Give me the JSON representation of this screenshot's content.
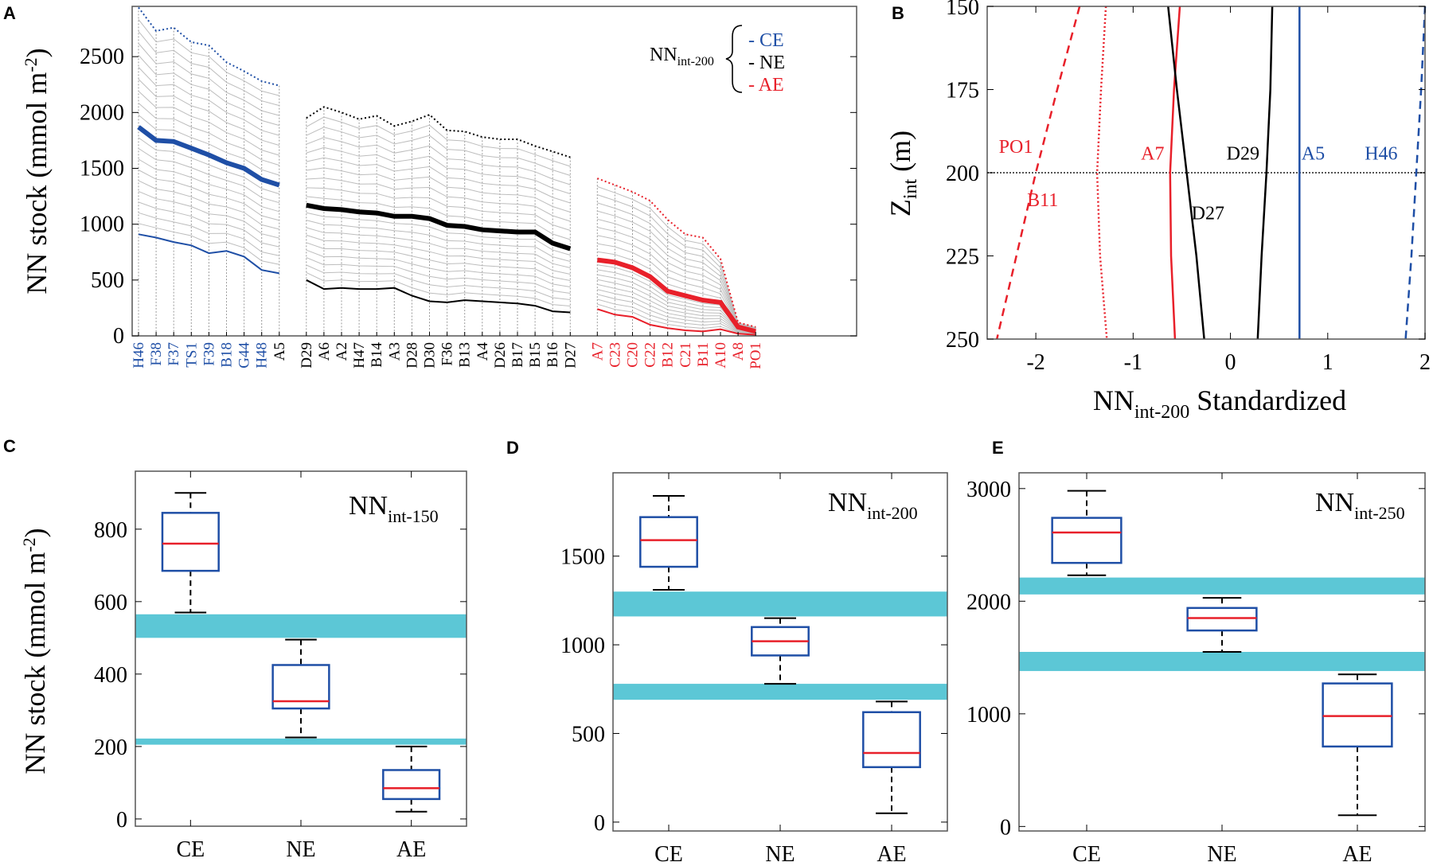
{
  "chart_data": [
    {
      "panel": "A",
      "type": "line",
      "ylabel": "NN stock (mmol m-2)",
      "ylabel_main": "NN stock (mmol m",
      "ylabel_sup": "-2",
      "ylabel_end": ")",
      "ylim": [
        0,
        2950
      ],
      "yticks": [
        0,
        500,
        1000,
        1500,
        2000,
        2500
      ],
      "legend": {
        "label_main": "NN",
        "label_sub": "int-200",
        "entries": [
          {
            "mark": "-",
            "name": "CE",
            "color": "#1f4fa6"
          },
          {
            "mark": "-",
            "name": "NE",
            "color": "#000000"
          },
          {
            "mark": "-",
            "name": "AE",
            "color": "#e8202a"
          }
        ]
      },
      "groups": [
        {
          "name": "CE",
          "color": "#1f4fa6",
          "stations": [
            "H46",
            "F38",
            "F37",
            "TS1",
            "F39",
            "B18",
            "G44",
            "H48",
            "A5"
          ],
          "station_colors": [
            "#1f4fa6",
            "#1f4fa6",
            "#1f4fa6",
            "#1f4fa6",
            "#1f4fa6",
            "#1f4fa6",
            "#1f4fa6",
            "#1f4fa6",
            "#000000"
          ],
          "top_250": [
            2940,
            2730,
            2760,
            2630,
            2600,
            2450,
            2370,
            2280,
            2240
          ],
          "mid_200": [
            1870,
            1750,
            1740,
            1680,
            1620,
            1550,
            1500,
            1400,
            1350
          ],
          "bot_150": [
            910,
            880,
            840,
            810,
            740,
            760,
            710,
            590,
            560
          ]
        },
        {
          "name": "NE",
          "color": "#000000",
          "stations": [
            "D29",
            "A6",
            "A2",
            "H47",
            "B14",
            "A3",
            "D28",
            "D30",
            "F36",
            "B13",
            "A4",
            "D26",
            "B17",
            "B15",
            "B16",
            "D27"
          ],
          "station_colors": [
            "#000000",
            "#000000",
            "#000000",
            "#000000",
            "#000000",
            "#000000",
            "#000000",
            "#000000",
            "#000000",
            "#000000",
            "#000000",
            "#000000",
            "#000000",
            "#000000",
            "#000000",
            "#000000"
          ],
          "top_250": [
            1950,
            2050,
            2000,
            1940,
            1970,
            1880,
            1920,
            1980,
            1840,
            1830,
            1780,
            1760,
            1760,
            1700,
            1650,
            1600
          ],
          "mid_200": [
            1170,
            1140,
            1130,
            1110,
            1100,
            1070,
            1070,
            1050,
            990,
            980,
            950,
            940,
            930,
            930,
            830,
            780
          ],
          "bot_150": [
            500,
            420,
            430,
            420,
            420,
            430,
            360,
            310,
            300,
            320,
            310,
            300,
            290,
            270,
            220,
            210
          ]
        },
        {
          "name": "AE",
          "color": "#e8202a",
          "stations": [
            "A7",
            "C23",
            "C20",
            "C22",
            "B12",
            "C21",
            "B11",
            "A10",
            "A8",
            "PO1"
          ],
          "station_colors": [
            "#e8202a",
            "#e8202a",
            "#e8202a",
            "#e8202a",
            "#e8202a",
            "#e8202a",
            "#e8202a",
            "#e8202a",
            "#e8202a",
            "#e8202a"
          ],
          "top_250": [
            1410,
            1350,
            1290,
            1210,
            1040,
            910,
            880,
            690,
            120,
            80
          ],
          "mid_200": [
            680,
            660,
            610,
            530,
            400,
            360,
            320,
            300,
            80,
            40
          ],
          "bot_150": [
            240,
            190,
            170,
            100,
            70,
            50,
            40,
            60,
            20,
            10
          ]
        }
      ]
    },
    {
      "panel": "B",
      "type": "line",
      "xlabel": "NN int-200 Standardized",
      "xlabel_main": "NN",
      "xlabel_sub": "int-200",
      "xlabel_end": " Standardized",
      "ylabel_main": "Z",
      "ylabel_sub": "int",
      "ylabel_end": " (m)",
      "xlim": [
        -2.5,
        2.0
      ],
      "ylim": [
        150,
        250
      ],
      "xticks": [
        -2,
        -1,
        0,
        1,
        2
      ],
      "yticks": [
        150,
        175,
        200,
        225,
        250
      ],
      "reference_line_y": 200,
      "series": [
        {
          "name": "PO1",
          "color": "#e8202a",
          "style": "dashed",
          "x": [
            -1.55,
            -1.78,
            -2.0,
            -2.2,
            -2.4
          ],
          "y": [
            150,
            175,
            200,
            225,
            250
          ]
        },
        {
          "name": "B11",
          "color": "#e8202a",
          "style": "dotted",
          "x": [
            -1.28,
            -1.33,
            -1.37,
            -1.34,
            -1.27
          ],
          "y": [
            150,
            175,
            200,
            225,
            250
          ]
        },
        {
          "name": "A7",
          "color": "#e8202a",
          "style": "solid",
          "x": [
            -0.52,
            -0.58,
            -0.62,
            -0.61,
            -0.57
          ],
          "y": [
            150,
            175,
            200,
            225,
            250
          ]
        },
        {
          "name": "D27",
          "color": "#000000",
          "style": "solid",
          "x": [
            -0.64,
            -0.55,
            -0.45,
            -0.35,
            -0.27
          ],
          "y": [
            150,
            175,
            200,
            225,
            250
          ]
        },
        {
          "name": "D29",
          "color": "#000000",
          "style": "solid",
          "x": [
            0.43,
            0.41,
            0.37,
            0.32,
            0.28
          ],
          "y": [
            150,
            175,
            200,
            225,
            250
          ]
        },
        {
          "name": "A5",
          "color": "#1f4fa6",
          "style": "solid",
          "x": [
            0.71,
            0.71,
            0.71,
            0.71,
            0.71
          ],
          "y": [
            150,
            175,
            200,
            225,
            250
          ]
        },
        {
          "name": "H46",
          "color": "#1f4fa6",
          "style": "dashed",
          "x": [
            2.0,
            1.96,
            1.91,
            1.86,
            1.8
          ],
          "y": [
            150,
            175,
            200,
            225,
            250
          ]
        }
      ],
      "labels": [
        {
          "text": "PO1",
          "color": "#e8202a"
        },
        {
          "text": "B11",
          "color": "#e8202a"
        },
        {
          "text": "A7",
          "color": "#e8202a"
        },
        {
          "text": "D29",
          "color": "#000000"
        },
        {
          "text": "D27",
          "color": "#000000"
        },
        {
          "text": "A5",
          "color": "#1f4fa6"
        },
        {
          "text": "H46",
          "color": "#1f4fa6"
        }
      ]
    },
    {
      "panel": "C",
      "type": "box",
      "ylabel": "NN stock (mmol m-2)",
      "ylabel_main": "NN stock (mmol m",
      "ylabel_sup": "-2",
      "ylabel_end": ")",
      "note_main": "NN",
      "note_sub": "int-150",
      "categories": [
        "CE",
        "NE",
        "AE"
      ],
      "ylim": [
        -20,
        960
      ],
      "yticks": [
        0,
        200,
        400,
        600,
        800
      ],
      "boxes": [
        {
          "min": 570,
          "q1": 685,
          "median": 760,
          "q3": 845,
          "max": 900
        },
        {
          "min": 225,
          "q1": 305,
          "median": 325,
          "q3": 425,
          "max": 495
        },
        {
          "min": 20,
          "q1": 55,
          "median": 85,
          "q3": 135,
          "max": 200
        }
      ],
      "bands": [
        [
          500,
          565
        ],
        [
          205,
          222
        ]
      ]
    },
    {
      "panel": "D",
      "type": "box",
      "note_main": "NN",
      "note_sub": "int-200",
      "categories": [
        "CE",
        "NE",
        "AE"
      ],
      "ylim": [
        -50,
        1970
      ],
      "yticks": [
        0,
        500,
        1000,
        1500
      ],
      "boxes": [
        {
          "min": 1310,
          "q1": 1440,
          "median": 1590,
          "q3": 1720,
          "max": 1840
        },
        {
          "min": 780,
          "q1": 940,
          "median": 1020,
          "q3": 1100,
          "max": 1150
        },
        {
          "min": 50,
          "q1": 310,
          "median": 390,
          "q3": 620,
          "max": 680
        }
      ],
      "bands": [
        [
          1160,
          1300
        ],
        [
          690,
          780
        ]
      ]
    },
    {
      "panel": "E",
      "type": "box",
      "note_main": "NN",
      "note_sub": "int-250",
      "categories": [
        "CE",
        "NE",
        "AE"
      ],
      "ylim": [
        -40,
        3140
      ],
      "yticks": [
        0,
        1000,
        2000,
        3000
      ],
      "boxes": [
        {
          "min": 2230,
          "q1": 2340,
          "median": 2610,
          "q3": 2740,
          "max": 2980
        },
        {
          "min": 1550,
          "q1": 1740,
          "median": 1850,
          "q3": 1940,
          "max": 2030
        },
        {
          "min": 100,
          "q1": 710,
          "median": 980,
          "q3": 1270,
          "max": 1350
        }
      ],
      "bands": [
        [
          2060,
          2210
        ],
        [
          1380,
          1550
        ]
      ]
    }
  ],
  "panel_letters": {
    "A": "A",
    "B": "B",
    "C": "C",
    "D": "D",
    "E": "E"
  }
}
